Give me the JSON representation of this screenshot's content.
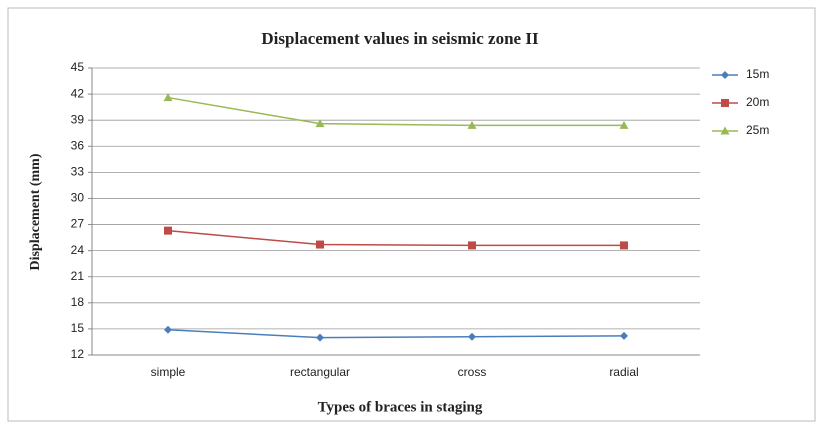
{
  "chart_data": {
    "type": "line",
    "title": "Displacement values in seismic zone II",
    "x_label": "Types of braces in staging",
    "y_label": "Displacement (mm)",
    "categories": [
      "simple",
      "rectangular",
      "cross",
      "radial"
    ],
    "series": [
      {
        "name": "15m",
        "color": "#4a7ebb",
        "marker": "diamond",
        "values": [
          14.9,
          14.0,
          14.1,
          14.2
        ]
      },
      {
        "name": "20m",
        "color": "#be4b48",
        "marker": "square",
        "values": [
          26.3,
          24.7,
          24.6,
          24.6
        ]
      },
      {
        "name": "25m",
        "color": "#98b954",
        "marker": "triangle",
        "values": [
          41.6,
          38.6,
          38.4,
          38.4
        ]
      }
    ],
    "ylim": [
      12,
      45
    ],
    "yticks": [
      12,
      15,
      18,
      21,
      24,
      27,
      30,
      33,
      36,
      39,
      42,
      45
    ],
    "grid": true,
    "legend": "right"
  }
}
